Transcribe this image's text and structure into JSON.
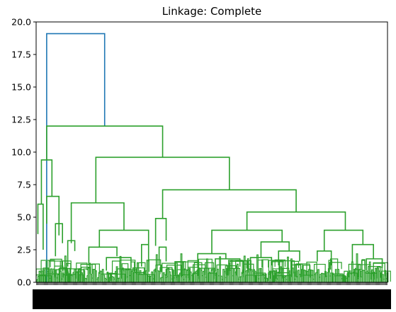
{
  "chart_data": {
    "type": "dendrogram",
    "title": "Linkage: Complete",
    "xlabel": "",
    "ylabel": "",
    "ylim": [
      0,
      20
    ],
    "yticks": [
      0.0,
      2.5,
      5.0,
      7.5,
      10.0,
      12.5,
      15.0,
      17.5,
      20.0
    ],
    "ytick_labels": [
      "0.0",
      "2.5",
      "5.0",
      "7.5",
      "10.0",
      "12.5",
      "15.0",
      "17.5",
      "20.0"
    ],
    "xlim": [
      0,
      1
    ],
    "grid": false,
    "legend": "none",
    "colors": {
      "above_threshold": "#1f77b4",
      "cluster": "#2ca02c"
    },
    "merges": [
      {
        "left": 0.195,
        "right": 0.03,
        "height": 19.1,
        "color": "#1f77b4",
        "left_base": 12.0,
        "right_base": 0.0
      },
      {
        "left": 0.03,
        "right": 0.36,
        "height": 12.0,
        "color": "#2ca02c",
        "left_base": 9.4,
        "right_base": 9.6
      },
      {
        "left": 0.015,
        "right": 0.045,
        "height": 9.4,
        "color": "#2ca02c",
        "left_base": 6.0,
        "right_base": 6.6
      },
      {
        "left": 0.17,
        "right": 0.55,
        "height": 9.6,
        "color": "#2ca02c",
        "left_base": 6.1,
        "right_base": 7.1
      },
      {
        "left": 0.1,
        "right": 0.25,
        "height": 6.1,
        "color": "#2ca02c",
        "left_base": 3.0,
        "right_base": 4.0
      },
      {
        "left": 0.36,
        "right": 0.74,
        "height": 7.1,
        "color": "#2ca02c",
        "left_base": 4.9,
        "right_base": 5.4
      },
      {
        "left": 0.6,
        "right": 0.88,
        "height": 5.4,
        "color": "#2ca02c",
        "left_base": 4.0,
        "right_base": 4.0
      },
      {
        "left": 0.5,
        "right": 0.7,
        "height": 4.0,
        "color": "#2ca02c",
        "left_base": 2.2,
        "right_base": 3.1
      },
      {
        "left": 0.82,
        "right": 0.93,
        "height": 4.0,
        "color": "#2ca02c",
        "left_base": 2.4,
        "right_base": 2.9
      },
      {
        "left": 0.18,
        "right": 0.32,
        "height": 4.0,
        "color": "#2ca02c",
        "left_base": 2.7,
        "right_base": 2.9
      },
      {
        "left": 0.34,
        "right": 0.37,
        "height": 4.9,
        "color": "#2ca02c",
        "left_base": 2.8,
        "right_base": 3.2
      },
      {
        "left": 0.005,
        "right": 0.02,
        "height": 6.0,
        "color": "#2ca02c",
        "left_base": 3.7,
        "right_base": 2.5
      },
      {
        "left": 0.03,
        "right": 0.065,
        "height": 6.6,
        "color": "#2ca02c",
        "left_base": 4.5,
        "right_base": 3.6
      },
      {
        "left": 0.055,
        "right": 0.075,
        "height": 4.5,
        "color": "#2ca02c",
        "left_base": 2.0,
        "right_base": 3.0
      },
      {
        "left": 0.09,
        "right": 0.11,
        "height": 3.2,
        "color": "#2ca02c",
        "left_base": 1.2,
        "right_base": 2.4
      },
      {
        "left": 0.15,
        "right": 0.23,
        "height": 2.7,
        "color": "#2ca02c",
        "left_base": 1.3,
        "right_base": 2.0
      },
      {
        "left": 0.2,
        "right": 0.27,
        "height": 1.9,
        "color": "#2ca02c",
        "left_base": 0.9,
        "right_base": 1.1
      },
      {
        "left": 0.3,
        "right": 0.32,
        "height": 2.9,
        "color": "#2ca02c",
        "left_base": 1.2,
        "right_base": 1.6
      },
      {
        "left": 0.35,
        "right": 0.37,
        "height": 2.7,
        "color": "#2ca02c",
        "left_base": 1.3,
        "right_base": 1.6
      },
      {
        "left": 0.46,
        "right": 0.54,
        "height": 2.2,
        "color": "#2ca02c",
        "left_base": 1.1,
        "right_base": 1.8
      },
      {
        "left": 0.51,
        "right": 0.58,
        "height": 1.8,
        "color": "#2ca02c",
        "left_base": 0.8,
        "right_base": 1.2
      },
      {
        "left": 0.64,
        "right": 0.72,
        "height": 3.1,
        "color": "#2ca02c",
        "left_base": 1.9,
        "right_base": 2.4
      },
      {
        "left": 0.61,
        "right": 0.67,
        "height": 1.9,
        "color": "#2ca02c",
        "left_base": 0.9,
        "right_base": 1.3
      },
      {
        "left": 0.69,
        "right": 0.75,
        "height": 2.4,
        "color": "#2ca02c",
        "left_base": 1.3,
        "right_base": 1.6
      },
      {
        "left": 0.8,
        "right": 0.84,
        "height": 2.4,
        "color": "#2ca02c",
        "left_base": 1.6,
        "right_base": 1.3
      },
      {
        "left": 0.9,
        "right": 0.96,
        "height": 2.9,
        "color": "#2ca02c",
        "left_base": 1.5,
        "right_base": 1.8
      },
      {
        "left": 0.94,
        "right": 0.985,
        "height": 1.8,
        "color": "#2ca02c",
        "left_base": 0.9,
        "right_base": 1.1
      }
    ]
  }
}
